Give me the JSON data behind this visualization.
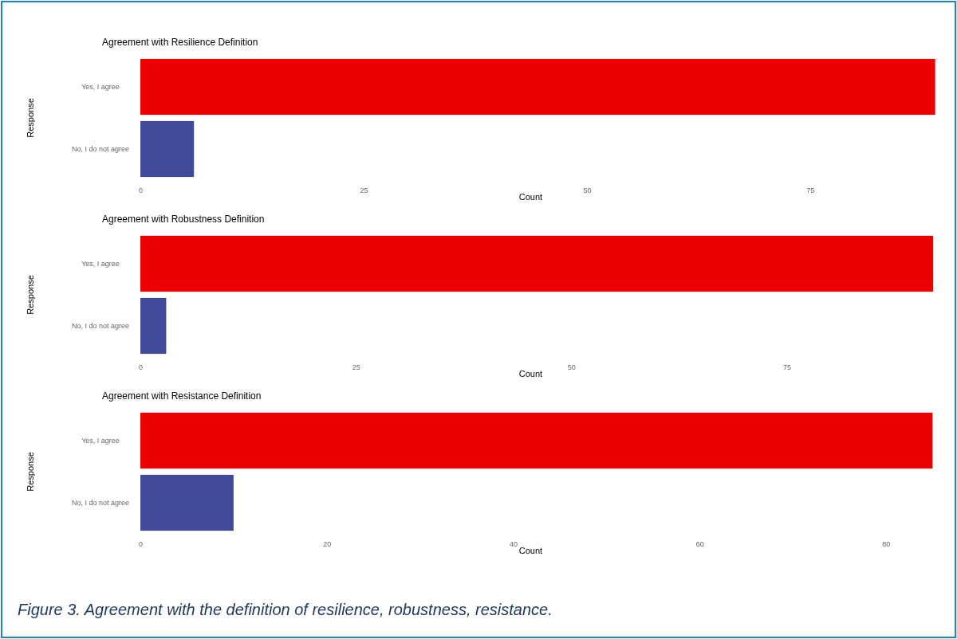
{
  "chart_data": [
    {
      "type": "bar",
      "orientation": "horizontal",
      "title": "Agreement with Resilience Definition",
      "xlabel": "Count",
      "ylabel": "Response",
      "categories": [
        "Yes, I agree",
        "No, I do not agree"
      ],
      "values": [
        89,
        6
      ],
      "colors": [
        "#ee0000",
        "#3f4a9a"
      ],
      "xlim": [
        0,
        91
      ],
      "xticks": [
        0,
        25,
        50,
        75
      ]
    },
    {
      "type": "bar",
      "orientation": "horizontal",
      "title": "Agreement with Robustness Definition",
      "xlabel": "Count",
      "ylabel": "Response",
      "categories": [
        "Yes, I agree",
        "No, I do not agree"
      ],
      "values": [
        92,
        3
      ],
      "colors": [
        "#ee0000",
        "#3f4a9a"
      ],
      "xlim": [
        0,
        94.3
      ],
      "xticks": [
        0,
        25,
        50,
        75
      ]
    },
    {
      "type": "bar",
      "orientation": "horizontal",
      "title": "Agreement with Resistance Definition",
      "xlabel": "Count",
      "ylabel": "Response",
      "categories": [
        "Yes, I agree",
        "No, I do not agree"
      ],
      "values": [
        85,
        10
      ],
      "colors": [
        "#ee0000",
        "#3f4a9a"
      ],
      "xlim": [
        0,
        87.2
      ],
      "xticks": [
        0,
        20,
        40,
        60,
        80
      ],
      "annotations": [
        "Figure 3. Agreement with the definition of resilience, robustness, resistance."
      ]
    }
  ]
}
